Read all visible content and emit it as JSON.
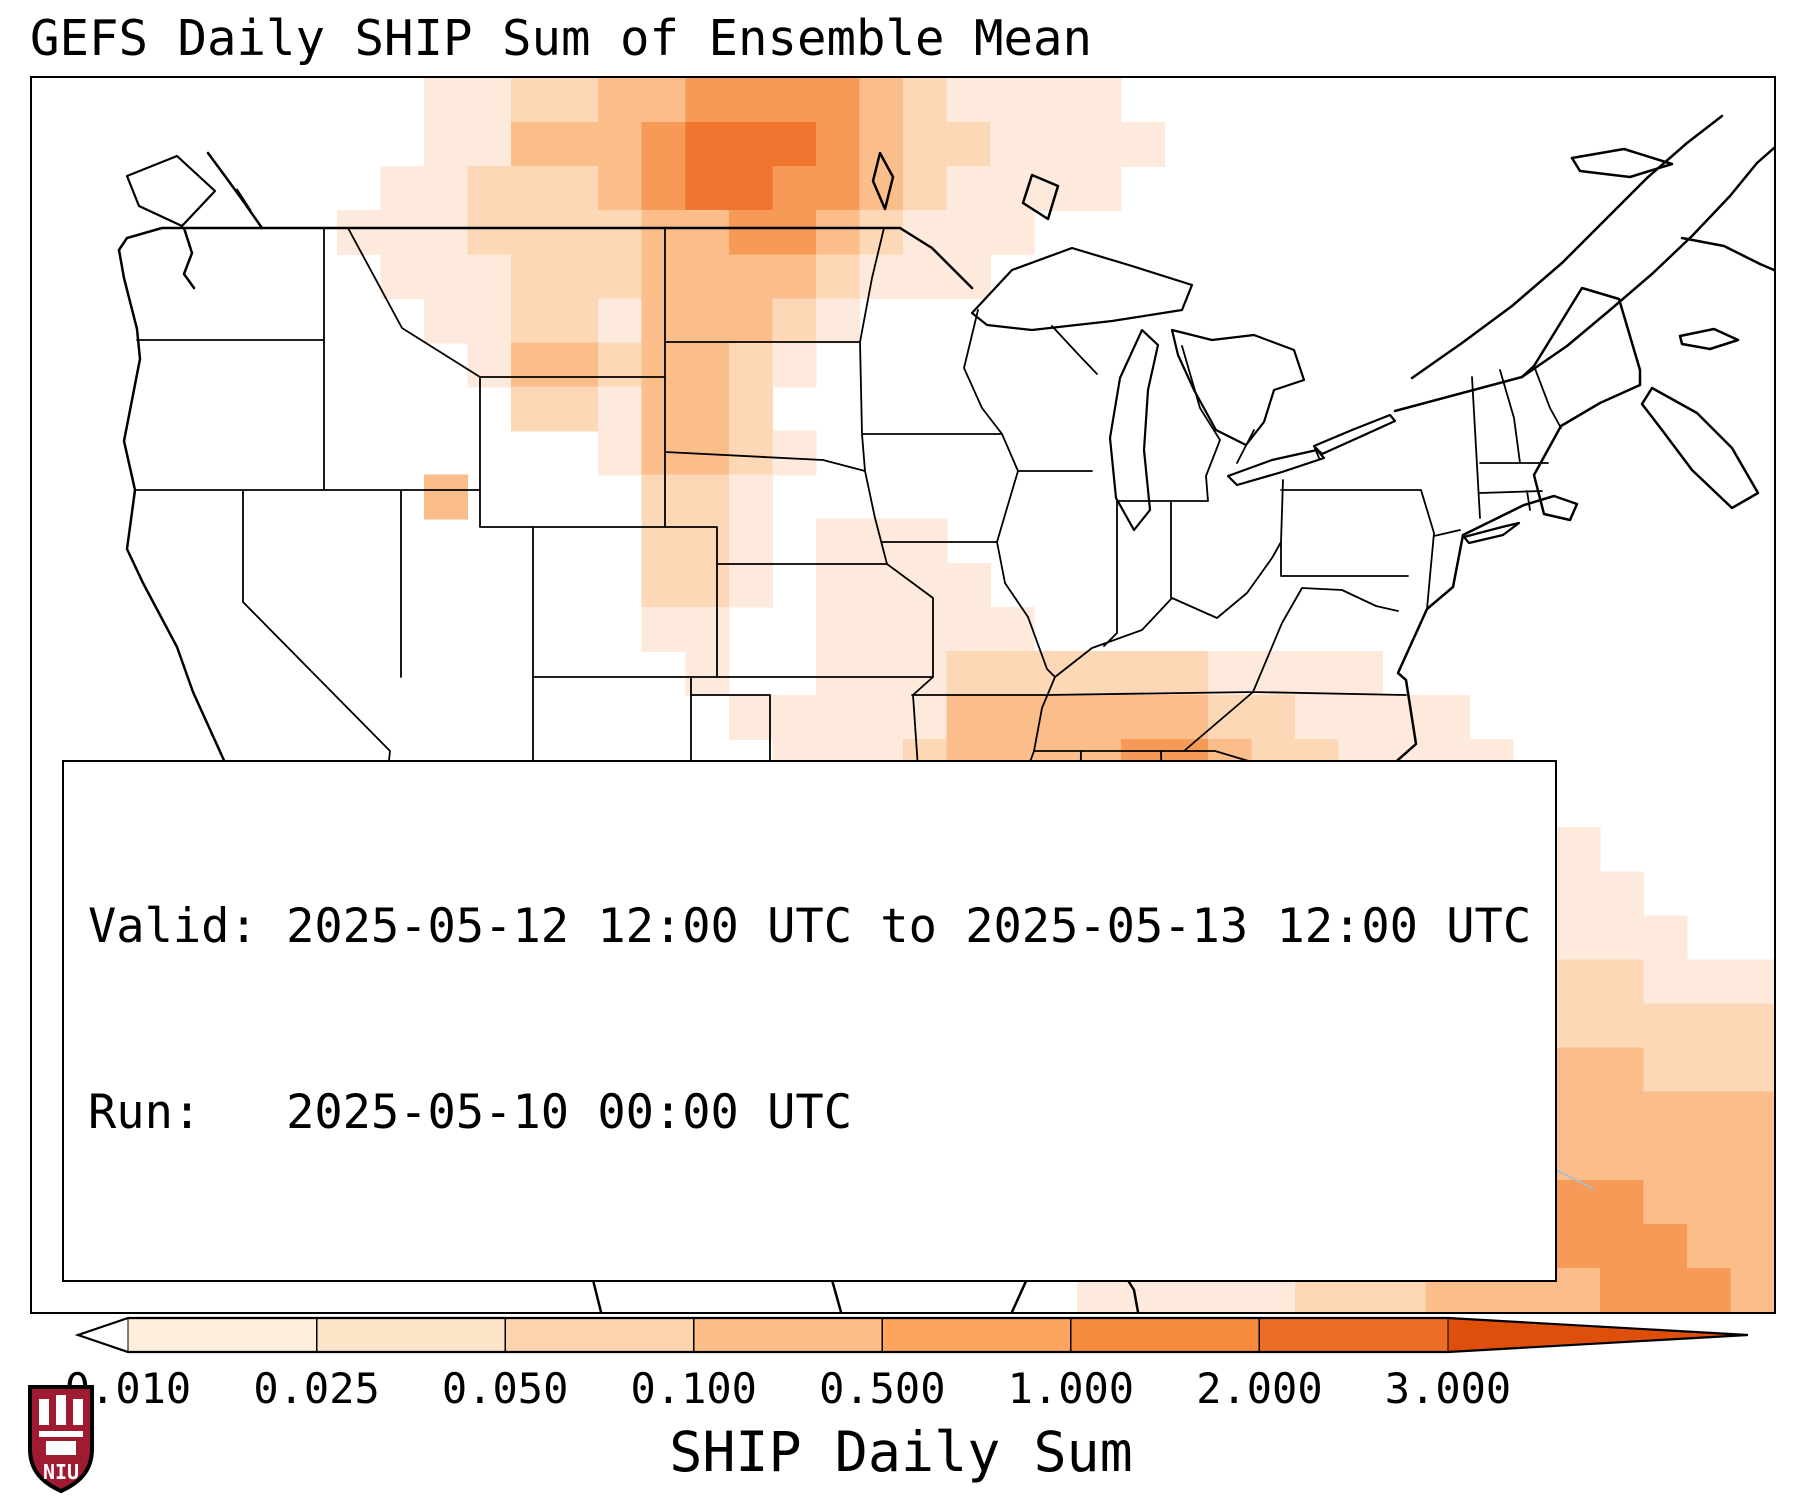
{
  "title": "GEFS Daily SHIP Sum of Ensemble Mean",
  "info_box": {
    "valid_line": "Valid: 2025-05-12 12:00 UTC to 2025-05-13 12:00 UTC",
    "run_line": "Run:   2025-05-10 00:00 UTC"
  },
  "colorbar": {
    "label": "SHIP Daily Sum",
    "ticks": [
      "0.010",
      "0.025",
      "0.050",
      "0.100",
      "0.500",
      "1.000",
      "2.000",
      "3.000"
    ],
    "segment_colors": [
      "#feeedd",
      "#fde3c8",
      "#fdd3ae",
      "#fdbe8a",
      "#fda55f",
      "#f68a3d",
      "#ec6e24"
    ],
    "under_color": "#ffffff",
    "over_color": "#de4f0c"
  },
  "logo": {
    "text": "NIU",
    "color": "#9e1b32"
  },
  "map": {
    "heatmap": {
      "palette": {
        "1": "#fdeadc",
        "2": "#fcd8b6",
        "3": "#fbbd8a",
        "4": "#f79a58",
        "5": "#ee7430"
      },
      "rows": [
        "0000000001122334444321111000000000000000",
        "0000000001133345554322111100000000000000",
        "0000000011222345544321111000000000000000",
        "0000000111222233443211100000000000000000",
        "0000000011122233332111000000000000000000",
        "0000000001122133321000000000000000000000",
        "0000000000133233210000000000000000000000",
        "0000000000022133200000000000000000000000",
        "0000000000000133210000000000000000000000",
        "0000000003000022100000000000000000000000",
        "0000000000000022101110000000000000000000",
        "0000000000000022101111000000000000000000",
        "0000000000000011001111100000000000000000",
        "0000000000000001001112222221111000000000",
        "0000000000000000111113333332211110000000",
        "0000000000000000011123333443221111000000",
        "0000000000000000011223333443222111100000",
        "0000000000000000011223333333222111110000",
        "0000000000000000112222333333222111111000",
        "0000000000000000112222222223322211111100",
        "0000000000000000022222222113322222222111",
        "0000000000000000022221111113322222222222",
        "0000000000000000001111111113322223333222",
        "0000000000000000000111111112222233333333",
        "0000000000000000000011111111222333333333",
        "0000000000000000000001111112223333444333",
        "0000000000000000000000011111222333344433",
        "0000000000000000000000001111122233334443"
      ]
    }
  }
}
